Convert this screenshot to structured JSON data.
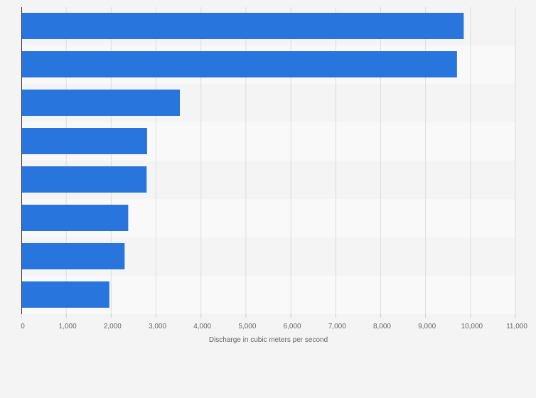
{
  "chart_data": {
    "type": "bar",
    "orientation": "horizontal",
    "title": "",
    "xlabel": "Discharge in cubic meters per second",
    "ylabel": "",
    "xlim": [
      0,
      11000
    ],
    "ticks": [
      0,
      1000,
      2000,
      3000,
      4000,
      5000,
      6000,
      7000,
      8000,
      9000,
      10000,
      11000
    ],
    "tick_labels": [
      "0",
      "1,000",
      "2,000",
      "3,000",
      "4,000",
      "5,000",
      "6,000",
      "7,000",
      "8,000",
      "9,000",
      "10,000",
      "11,000"
    ],
    "categories": [
      "",
      "",
      "",
      "",
      "",
      "",
      "",
      ""
    ],
    "values": [
      9850,
      9700,
      3530,
      2800,
      2790,
      2380,
      2300,
      1960
    ],
    "grid": true
  },
  "colors": {
    "bar": "#2876dd",
    "page_background": "#f4f4f4",
    "band_dark": "#f4f4f4",
    "band_light": "#f9f9f9",
    "grid": "#dddddd",
    "axis": "#333333",
    "text": "#666666"
  }
}
